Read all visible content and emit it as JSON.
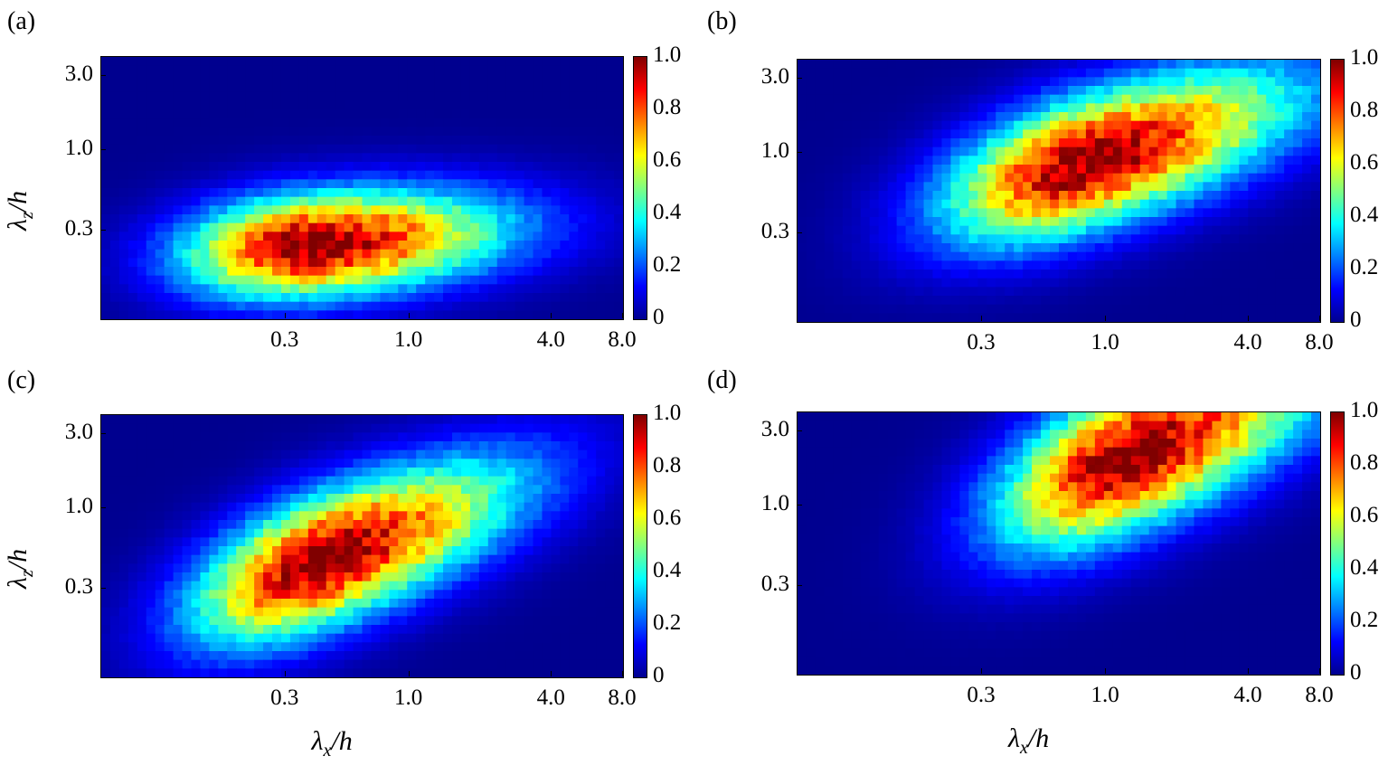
{
  "colormap": [
    "#00008f",
    "#0000ff",
    "#0080ff",
    "#00ffff",
    "#80ff80",
    "#ffff00",
    "#ff8000",
    "#ff0000",
    "#800000"
  ],
  "chart_data": [
    {
      "type": "heatmap",
      "panel_label": "(a)",
      "x_ticks": [
        "0.3",
        "1.0",
        "4.0",
        "8.0"
      ],
      "y_ticks": [
        "3.0",
        "1.0",
        "0.3"
      ],
      "colorbar_ticks": [
        "1.0",
        "0.8",
        "0.6",
        "0.4",
        "0.2",
        "0"
      ],
      "ylabel_var": "λ",
      "ylabel_sub": "z",
      "ylabel_rest": "/h",
      "xlabel_var": "",
      "xlabel_sub": "",
      "xlabel_rest": "",
      "xscale": "log",
      "yscale": "log",
      "xlim": [
        0.05,
        8.0
      ],
      "ylim": [
        0.08,
        4.0
      ],
      "zlim": [
        0,
        1.0
      ],
      "peak": {
        "x": 0.38,
        "y": 0.24,
        "value": 1.0
      },
      "peak_spread": {
        "x": 0.55,
        "y": 0.35,
        "tilt": 0.12
      }
    },
    {
      "type": "heatmap",
      "panel_label": "(b)",
      "x_ticks": [
        "0.3",
        "1.0",
        "4.0",
        "8.0"
      ],
      "y_ticks": [
        "3.0",
        "1.0",
        "0.3"
      ],
      "colorbar_ticks": [
        "1.0",
        "0.8",
        "0.6",
        "0.4",
        "0.2",
        "0"
      ],
      "ylabel_var": "",
      "ylabel_sub": "",
      "ylabel_rest": "",
      "xlabel_var": "",
      "xlabel_sub": "",
      "xlabel_rest": "",
      "xscale": "log",
      "yscale": "log",
      "xlim": [
        0.05,
        8.0
      ],
      "ylim": [
        0.08,
        4.0
      ],
      "zlim": [
        0,
        1.0
      ],
      "peak": {
        "x": 0.8,
        "y": 0.85,
        "value": 1.0
      },
      "peak_spread": {
        "x": 0.6,
        "y": 0.45,
        "tilt": 0.45
      }
    },
    {
      "type": "heatmap",
      "panel_label": "(c)",
      "x_ticks": [
        "0.3",
        "1.0",
        "4.0",
        "8.0"
      ],
      "y_ticks": [
        "3.0",
        "1.0",
        "0.3"
      ],
      "colorbar_ticks": [
        "1.0",
        "0.8",
        "0.6",
        "0.4",
        "0.2",
        "0"
      ],
      "ylabel_var": "λ",
      "ylabel_sub": "z",
      "ylabel_rest": "/h",
      "xlabel_var": "λ",
      "xlabel_sub": "x",
      "xlabel_rest": "/h",
      "xscale": "log",
      "yscale": "log",
      "xlim": [
        0.05,
        8.0
      ],
      "ylim": [
        0.08,
        4.0
      ],
      "zlim": [
        0,
        1.0
      ],
      "peak": {
        "x": 0.42,
        "y": 0.45,
        "value": 1.0
      },
      "peak_spread": {
        "x": 0.55,
        "y": 0.45,
        "tilt": 0.55
      }
    },
    {
      "type": "heatmap",
      "panel_label": "(d)",
      "x_ticks": [
        "0.3",
        "1.0",
        "4.0",
        "8.0"
      ],
      "y_ticks": [
        "3.0",
        "1.0",
        "0.3"
      ],
      "colorbar_ticks": [
        "1.0",
        "0.8",
        "0.6",
        "0.4",
        "0.2",
        "0"
      ],
      "ylabel_var": "",
      "ylabel_sub": "",
      "ylabel_rest": "",
      "xlabel_var": "λ",
      "xlabel_sub": "x",
      "xlabel_rest": "/h",
      "xscale": "log",
      "yscale": "log",
      "xlim": [
        0.05,
        8.0
      ],
      "ylim": [
        0.08,
        4.0
      ],
      "zlim": [
        0,
        1.0
      ],
      "peak": {
        "x": 1.2,
        "y": 2.0,
        "value": 1.0
      },
      "peak_spread": {
        "x": 0.55,
        "y": 0.5,
        "tilt": 0.6
      }
    }
  ]
}
